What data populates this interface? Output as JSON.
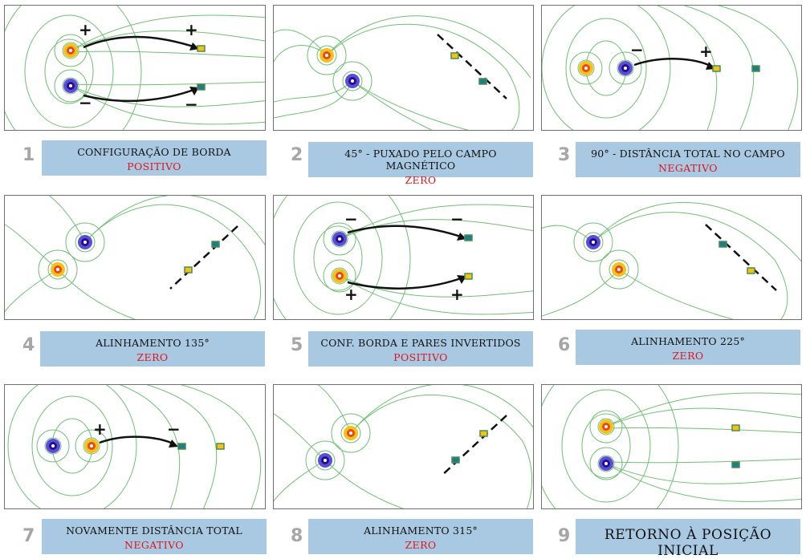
{
  "colors": {
    "caption_bg": "#a9c9e3",
    "field_line": "#6fbf73",
    "result_text": "#e0141b",
    "number_text": "#a6a6a6"
  },
  "panels": [
    {
      "number": "1",
      "title": "CONFIGURAÇÃO DE BORDA",
      "result": "POSITIVO",
      "magnets": [
        {
          "pole": "positive",
          "signs": [
            "+",
            "+"
          ]
        },
        {
          "pole": "negative",
          "signs": [
            "−",
            "−"
          ]
        }
      ]
    },
    {
      "number": "2",
      "title": "45° - PUXADO PELO CAMPO MAGNÉTICO",
      "result": "ZERO"
    },
    {
      "number": "3",
      "title": "90° - DISTÂNCIA TOTAL NO CAMPO",
      "result": "NEGATIVO",
      "magnets": [
        {
          "signs": [
            "−",
            "+"
          ]
        }
      ]
    },
    {
      "number": "4",
      "title": "ALINHAMENTO 135°",
      "result": "ZERO"
    },
    {
      "number": "5",
      "title": "CONF. BORDA E PARES INVERTIDOS",
      "result": "POSITIVO",
      "magnets": [
        {
          "pole": "negative",
          "signs": [
            "−",
            "−"
          ]
        },
        {
          "pole": "positive",
          "signs": [
            "+",
            "+"
          ]
        }
      ]
    },
    {
      "number": "6",
      "title": "ALINHAMENTO 225°",
      "result": "ZERO"
    },
    {
      "number": "7",
      "title": "NOVAMENTE DISTÂNCIA TOTAL",
      "result": "NEGATIVO",
      "magnets": [
        {
          "signs": [
            "+",
            "−"
          ]
        }
      ]
    },
    {
      "number": "8",
      "title": "ALINHAMENTO 315°",
      "result": "ZERO"
    },
    {
      "number": "9",
      "title": "RETORNO À POSIÇÃO INICIAL",
      "result": ""
    }
  ]
}
